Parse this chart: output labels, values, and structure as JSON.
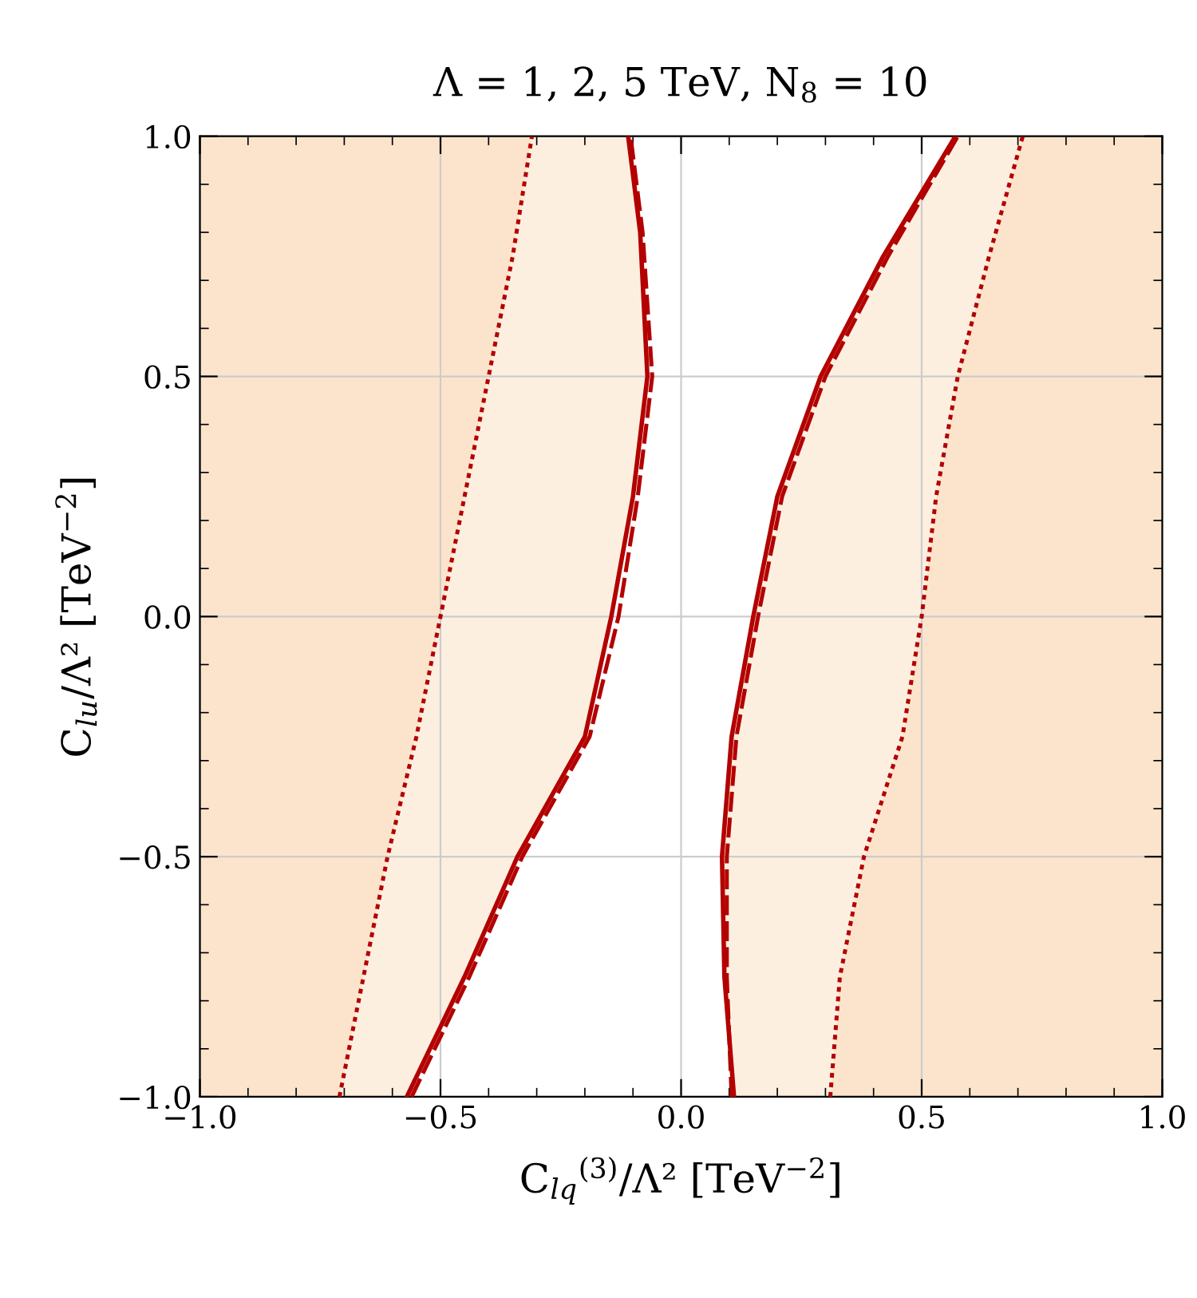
{
  "chart_data": {
    "type": "line",
    "title": "Λ = 1, 2, 5 TeV, N$_{8}$ = 10",
    "xlabel": "C$_{lq}$$^{(3)}$/Λ² [TeV$^{−2}$]",
    "ylabel": "C$_{lu}$/Λ² [TeV$^{−2}$]",
    "xlim": [
      -1,
      1
    ],
    "ylim": [
      -1,
      1
    ],
    "xticks": [
      {
        "value": -1,
        "label": "−1.0"
      },
      {
        "value": -0.5,
        "label": "−0.5"
      },
      {
        "value": 0,
        "label": "0.0"
      },
      {
        "value": 0.5,
        "label": "0.5"
      },
      {
        "value": 1,
        "label": "1.0"
      }
    ],
    "yticks": [
      {
        "value": -1,
        "label": "−1.0"
      },
      {
        "value": -0.5,
        "label": "−0.5"
      },
      {
        "value": 0,
        "label": "0.0"
      },
      {
        "value": 0.5,
        "label": "0.5"
      },
      {
        "value": 1,
        "label": "1.0"
      }
    ],
    "grid": true,
    "legend": false,
    "colors": [
      "#fce4cc",
      "#fdefe0"
    ],
    "series": [
      {
        "color": "#b30000",
        "line_style": "solid",
        "x": [
          -0.57,
          -0.45,
          -0.34,
          -0.2,
          -0.145,
          -0.1,
          -0.07,
          -0.085,
          -0.11
        ],
        "values": [
          -1,
          -0.75,
          -0.5,
          -0.25,
          0,
          0.25,
          0.5,
          0.8,
          1
        ]
      },
      {
        "color": "#b30000",
        "line_style": "dashed",
        "x": [
          -0.56,
          -0.44,
          -0.33,
          -0.19,
          -0.13,
          -0.09,
          -0.06,
          -0.08,
          -0.105
        ],
        "values": [
          -1,
          -0.75,
          -0.5,
          -0.25,
          0,
          0.25,
          0.5,
          0.8,
          1
        ]
      },
      {
        "color": "#b30000",
        "line_style": "dotted",
        "x": [
          -0.71,
          -0.66,
          -0.61,
          -0.55,
          -0.5,
          -0.45,
          -0.4,
          -0.35,
          -0.31
        ],
        "values": [
          -1,
          -0.75,
          -0.5,
          -0.25,
          0,
          0.25,
          0.5,
          0.75,
          1
        ]
      },
      {
        "color": "#b30000",
        "line_style": "solid",
        "x": [
          0.11,
          0.09,
          0.085,
          0.105,
          0.15,
          0.2,
          0.29,
          0.42,
          0.57
        ],
        "values": [
          -1,
          -0.75,
          -0.5,
          -0.25,
          0,
          0.25,
          0.5,
          0.75,
          1
        ]
      },
      {
        "color": "#b30000",
        "line_style": "dashed",
        "x": [
          0.105,
          0.095,
          0.095,
          0.115,
          0.16,
          0.21,
          0.3,
          0.43,
          0.575
        ],
        "values": [
          -1,
          -0.75,
          -0.5,
          -0.25,
          0,
          0.25,
          0.5,
          0.75,
          1
        ]
      },
      {
        "color": "#b30000",
        "line_style": "dotted",
        "x": [
          0.31,
          0.33,
          0.38,
          0.46,
          0.5,
          0.53,
          0.575,
          0.64,
          0.71
        ],
        "values": [
          -1,
          -0.75,
          -0.5,
          -0.25,
          0,
          0.25,
          0.5,
          0.75,
          1
        ]
      }
    ]
  }
}
